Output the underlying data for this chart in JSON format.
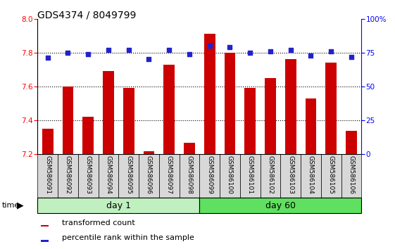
{
  "title": "GDS4374 / 8049799",
  "samples": [
    "GSM586091",
    "GSM586092",
    "GSM586093",
    "GSM586094",
    "GSM586095",
    "GSM586096",
    "GSM586097",
    "GSM586098",
    "GSM586099",
    "GSM586100",
    "GSM586101",
    "GSM586102",
    "GSM586103",
    "GSM586104",
    "GSM586105",
    "GSM586106"
  ],
  "transformed_count": [
    7.35,
    7.6,
    7.42,
    7.69,
    7.59,
    7.22,
    7.73,
    7.27,
    7.91,
    7.8,
    7.59,
    7.65,
    7.76,
    7.53,
    7.74,
    7.34
  ],
  "percentile_rank": [
    71,
    75,
    74,
    77,
    77,
    70,
    77,
    74,
    80,
    79,
    75,
    76,
    77,
    73,
    76,
    72
  ],
  "bar_color": "#cc0000",
  "dot_color": "#2222cc",
  "ylim_left": [
    7.2,
    8.0
  ],
  "ylim_right": [
    0,
    100
  ],
  "yticks_left": [
    7.2,
    7.4,
    7.6,
    7.8,
    8.0
  ],
  "yticks_right": [
    0,
    25,
    50,
    75,
    100
  ],
  "ytick_labels_right": [
    "0",
    "25",
    "50",
    "75",
    "100%"
  ],
  "grid_values": [
    7.4,
    7.6,
    7.8
  ],
  "day1_label": "day 1",
  "day60_label": "day 60",
  "day1_indices": [
    0,
    7
  ],
  "day60_indices": [
    8,
    15
  ],
  "time_label": "time",
  "legend_bar_label": "transformed count",
  "legend_dot_label": "percentile rank within the sample",
  "bg_color_labels": "#d8d8d8",
  "day1_color": "#c0f0c0",
  "day60_color": "#60e060",
  "title_fontsize": 10,
  "tick_fontsize": 7.5,
  "label_fontsize": 6.5,
  "bar_width": 0.55
}
